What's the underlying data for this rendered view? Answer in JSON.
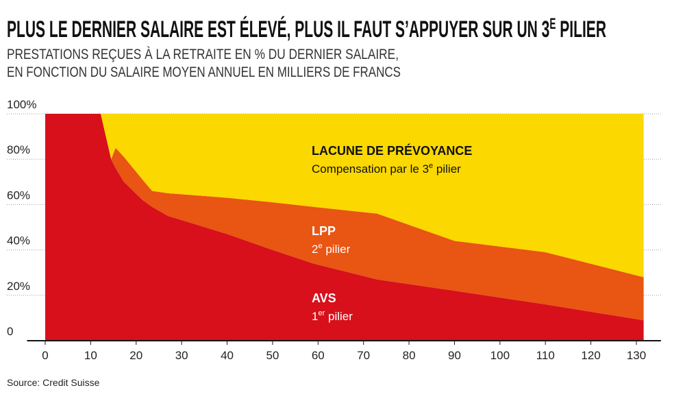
{
  "chart_data": {
    "type": "stacked_area",
    "title": [
      "PLUS LE DERNIER SALAIRE EST ÉLEVÉ, PLUS IL FAUT S’APPUYER SUR UN 3",
      "E",
      " PILIER"
    ],
    "subtitle": [
      "PRESTATIONS REÇUES À LA RETRAITE EN % DU DERNIER SALAIRE,",
      "EN FONCTION DU SALAIRE MOYEN ANNUEL EN MILLIERS DE FRANCS"
    ],
    "source": "Source: Credit Suisse",
    "x": [
      0,
      12.2,
      14.5,
      15.5,
      17.3,
      21.4,
      23.5,
      27,
      40,
      50,
      59,
      73,
      90,
      110,
      131.6
    ],
    "series": [
      {
        "name": "AVS",
        "color": "#d7101b",
        "values": [
          100,
          100,
          80,
          76,
          70,
          62,
          59,
          55,
          47,
          40,
          34,
          27,
          22,
          16,
          9
        ]
      },
      {
        "name": "LPP",
        "color": "#e95512",
        "values": [
          0,
          0,
          0,
          9,
          11,
          9,
          7,
          10,
          16,
          21,
          25,
          29,
          22,
          23,
          19
        ]
      },
      {
        "name": "LACUNE DE PRÉVOYANCE",
        "color": "#fad800",
        "values": [
          0,
          0,
          20,
          15,
          19,
          29,
          34,
          35,
          37,
          39,
          41,
          44,
          56,
          61,
          72
        ]
      }
    ],
    "annotations": [
      {
        "title": "LACUNE DE PRÉVOYANCE",
        "text": [
          "Compensation par le 3",
          "e",
          " pilier"
        ]
      },
      {
        "title": "LPP",
        "text": [
          "2",
          "e",
          " pilier"
        ]
      },
      {
        "title": "AVS",
        "text": [
          "1",
          "er",
          " pilier"
        ]
      }
    ],
    "xlim": [
      -4,
      135.4
    ],
    "xticks": [
      0,
      10,
      20,
      30,
      40,
      50,
      60,
      70,
      80,
      90,
      100,
      110,
      120,
      130
    ],
    "ylim": [
      0,
      100
    ],
    "yticks": [
      0,
      {
        "value": 20,
        "label": "20%"
      },
      {
        "value": 40,
        "label": "40%"
      },
      {
        "value": 60,
        "label": "60%"
      },
      {
        "value": 80,
        "label": "80%"
      },
      {
        "value": 100,
        "label": "100%"
      }
    ],
    "grid": true
  }
}
